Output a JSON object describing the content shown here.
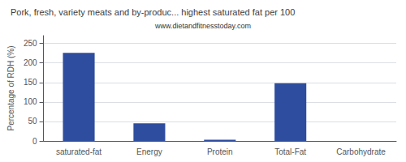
{
  "chart_data": {
    "type": "bar",
    "title": "Pork, fresh, variety meats and by-produc... highest saturated fat per 100",
    "subtitle": "www.dietandfitnesstoday.com",
    "categories": [
      "saturated-fat",
      "Energy",
      "Protein",
      "Total-Fat",
      "Carbohydrate"
    ],
    "values": [
      226,
      45,
      3,
      148,
      0
    ],
    "color": "#2e4d9e",
    "ylabel": "Percentage of RDH (%)",
    "ylim": [
      0,
      270
    ],
    "yticks": [
      0,
      50,
      100,
      150,
      200,
      250
    ],
    "grid": true
  }
}
